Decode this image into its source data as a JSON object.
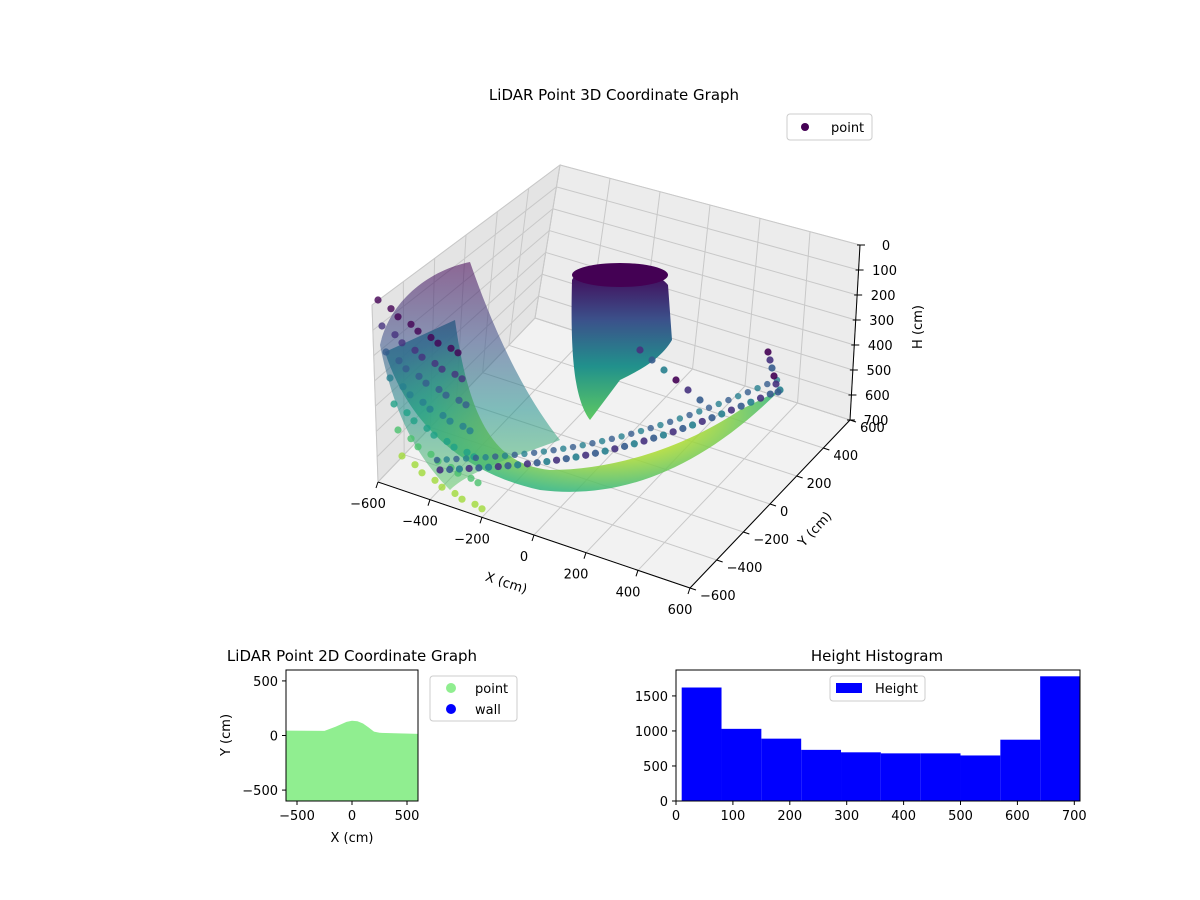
{
  "chart_data": [
    {
      "type": "scatter",
      "title": "LiDAR Point 3D Coordinate Graph",
      "xlabel": "X (cm)",
      "ylabel": "Y (cm)",
      "zlabel": "H (cm)",
      "xlim": [
        -600,
        600
      ],
      "ylim": [
        -600,
        600
      ],
      "zlim": [
        0,
        700
      ],
      "z_inverted": true,
      "x_ticks": [
        "−600",
        "−400",
        "−200",
        "0",
        "200",
        "400",
        "600"
      ],
      "y_ticks": [
        "−600",
        "−400",
        "−200",
        "0",
        "200",
        "400",
        "600"
      ],
      "z_ticks": [
        "0",
        "100",
        "200",
        "300",
        "400",
        "500",
        "600",
        "700"
      ],
      "colormap": "viridis",
      "grid": true,
      "legend": {
        "position": "top-right",
        "entries": [
          "point"
        ]
      },
      "series": [
        {
          "name": "point",
          "color": "#440154"
        }
      ]
    },
    {
      "type": "scatter",
      "title": "LiDAR Point 2D Coordinate Graph",
      "xlabel": "X (cm)",
      "ylabel": "Y (cm)",
      "xlim": [
        -600,
        600
      ],
      "ylim": [
        -600,
        600
      ],
      "x_ticks": [
        "−500",
        "0",
        "500"
      ],
      "y_ticks": [
        "−500",
        "0",
        "500"
      ],
      "legend": {
        "position": "outside-right",
        "entries": [
          "point",
          "wall"
        ]
      },
      "series": [
        {
          "name": "point",
          "color": "#90ee90",
          "boundary_x": [
            -600,
            -250,
            -150,
            -50,
            0,
            50,
            100,
            150,
            200,
            250,
            600
          ],
          "boundary_y": [
            45,
            42,
            80,
            125,
            135,
            130,
            110,
            75,
            35,
            25,
            15
          ]
        },
        {
          "name": "wall",
          "color": "#0000ff"
        }
      ]
    },
    {
      "type": "bar",
      "title": "Height Histogram",
      "xlabel": "",
      "ylabel": "",
      "xlim": [
        0,
        710
      ],
      "ylim": [
        0,
        1870
      ],
      "x_ticks": [
        "0",
        "100",
        "200",
        "300",
        "400",
        "500",
        "600",
        "700"
      ],
      "y_ticks": [
        "0",
        "500",
        "1000",
        "1500"
      ],
      "bin_edges": [
        10,
        80,
        150,
        220,
        290,
        360,
        430,
        500,
        570,
        640,
        710
      ],
      "series": [
        {
          "name": "Height",
          "color": "#0000ff",
          "values": [
            1620,
            1030,
            890,
            730,
            695,
            680,
            680,
            650,
            875,
            1780
          ]
        }
      ],
      "legend": {
        "position": "top-center",
        "entries": [
          "Height"
        ]
      }
    }
  ]
}
